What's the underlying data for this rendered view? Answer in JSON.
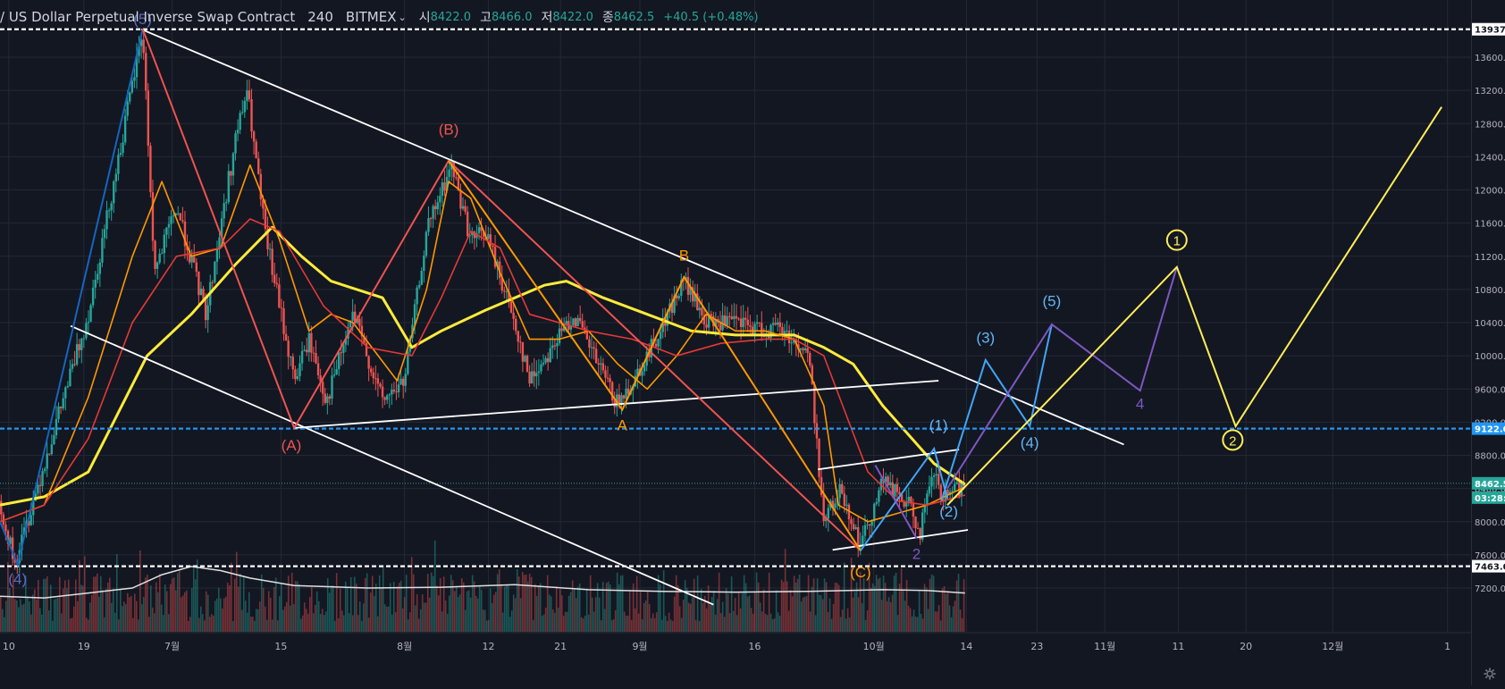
{
  "header": {
    "symbol_title": "/ US Dollar Perpetual Inverse Swap Contract",
    "interval": "240",
    "exchange": "BITMEX",
    "open_label": "시",
    "open_value": "8422.0",
    "high_label": "고",
    "high_value": "8466.0",
    "low_label": "저",
    "low_value": "8422.0",
    "close_label": "종",
    "close_value": "8462.5",
    "change": "+40.5 (+0.48%)"
  },
  "colors": {
    "background": "#131722",
    "grid": "#242836",
    "up": "#26a69a",
    "down": "#ef5350",
    "ma_yellow": "#ffeb3b",
    "ma_orange": "#ff9800",
    "ma_red": "#e53935",
    "level_blue": "#2196f3",
    "level_white": "#ffffff",
    "wave_blue": "#1565c0",
    "wave_red": "#ef5350",
    "wave_orange": "#ff9800",
    "wave_lightblue": "#42a5f5",
    "wave_purple": "#7e57c2",
    "wave_yellow": "#ffee58"
  },
  "chart_data": {
    "type": "candlestick",
    "y_axis": {
      "ticks": [
        13600,
        13200,
        12800,
        12400,
        12000,
        11600,
        11200,
        10800,
        10400,
        10000,
        9600,
        9200,
        8800,
        8400,
        8000,
        7600,
        7200
      ],
      "tick_labels": [
        "13600.0",
        "13200.0",
        "12800.0",
        "12400.0",
        "12000.0",
        "11600.0",
        "11200.0",
        "10800.0",
        "10400.0",
        "10000.0",
        "9600.0",
        "9200.0",
        "8800.0",
        "8400.0",
        "8000.0",
        "7600.0",
        "7200.0"
      ],
      "range": [
        7000,
        14000
      ]
    },
    "x_axis": {
      "ticks": [
        "10",
        "19",
        "7월",
        "15",
        "8월",
        "12",
        "21",
        "9월",
        "16",
        "10월",
        "14",
        "23",
        "11월",
        "11",
        "20",
        "12월",
        "1"
      ],
      "tick_pos": [
        0.006,
        0.057,
        0.117,
        0.191,
        0.275,
        0.332,
        0.381,
        0.435,
        0.513,
        0.594,
        0.657,
        0.705,
        0.751,
        0.801,
        0.847,
        0.906,
        0.984
      ]
    },
    "price_levels": [
      {
        "value": 13937,
        "label": "13937.",
        "color": "#ffffff",
        "style": "dashed"
      },
      {
        "value": 9122,
        "label": "9122.0",
        "color": "#2196f3",
        "style": "dashed"
      },
      {
        "value": 8462.5,
        "label": "8462.5",
        "color": "#26a69a",
        "style": "dotted"
      },
      {
        "value": 7463,
        "label": "7463.0",
        "color": "#ffffff",
        "style": "dashed"
      }
    ],
    "countdown_label": "03:28:3",
    "candle_path": [
      [
        0.0,
        8250
      ],
      [
        0.01,
        7480
      ],
      [
        0.03,
        8700
      ],
      [
        0.06,
        10500
      ],
      [
        0.085,
        12800
      ],
      [
        0.097,
        13937
      ],
      [
        0.105,
        11000
      ],
      [
        0.12,
        11800
      ],
      [
        0.14,
        10500
      ],
      [
        0.16,
        12600
      ],
      [
        0.168,
        13200
      ],
      [
        0.18,
        11500
      ],
      [
        0.2,
        9700
      ],
      [
        0.21,
        10200
      ],
      [
        0.222,
        9450
      ],
      [
        0.24,
        10500
      ],
      [
        0.26,
        9450
      ],
      [
        0.275,
        9700
      ],
      [
        0.29,
        11500
      ],
      [
        0.307,
        12300
      ],
      [
        0.32,
        11400
      ],
      [
        0.33,
        11500
      ],
      [
        0.35,
        10400
      ],
      [
        0.36,
        9700
      ],
      [
        0.39,
        10500
      ],
      [
        0.42,
        9400
      ],
      [
        0.44,
        10000
      ],
      [
        0.465,
        10900
      ],
      [
        0.48,
        10400
      ],
      [
        0.5,
        10400
      ],
      [
        0.52,
        10300
      ],
      [
        0.53,
        10350
      ],
      [
        0.55,
        10000
      ],
      [
        0.56,
        8000
      ],
      [
        0.572,
        8400
      ],
      [
        0.585,
        7700
      ],
      [
        0.6,
        8500
      ],
      [
        0.62,
        8150
      ],
      [
        0.625,
        7850
      ],
      [
        0.635,
        8600
      ],
      [
        0.64,
        8250
      ],
      [
        0.656,
        8460
      ]
    ],
    "moving_averages": [
      {
        "color": "#ffeb3b",
        "points": [
          [
            0.0,
            8200
          ],
          [
            0.03,
            8300
          ],
          [
            0.06,
            8600
          ],
          [
            0.08,
            9300
          ],
          [
            0.1,
            10000
          ],
          [
            0.13,
            10500
          ],
          [
            0.16,
            11100
          ],
          [
            0.185,
            11550
          ],
          [
            0.205,
            11200
          ],
          [
            0.225,
            10900
          ],
          [
            0.26,
            10700
          ],
          [
            0.28,
            10100
          ],
          [
            0.3,
            10300
          ],
          [
            0.33,
            10550
          ],
          [
            0.37,
            10850
          ],
          [
            0.385,
            10900
          ],
          [
            0.41,
            10700
          ],
          [
            0.44,
            10500
          ],
          [
            0.47,
            10300
          ],
          [
            0.5,
            10250
          ],
          [
            0.54,
            10250
          ],
          [
            0.56,
            10100
          ],
          [
            0.58,
            9900
          ],
          [
            0.6,
            9400
          ],
          [
            0.62,
            9000
          ],
          [
            0.635,
            8700
          ],
          [
            0.656,
            8450
          ]
        ]
      },
      {
        "color": "#ff9800",
        "points": [
          [
            0.0,
            8000
          ],
          [
            0.03,
            8200
          ],
          [
            0.06,
            9500
          ],
          [
            0.09,
            11200
          ],
          [
            0.11,
            12100
          ],
          [
            0.13,
            11200
          ],
          [
            0.15,
            11300
          ],
          [
            0.17,
            12300
          ],
          [
            0.19,
            11400
          ],
          [
            0.21,
            10300
          ],
          [
            0.225,
            10500
          ],
          [
            0.24,
            10400
          ],
          [
            0.27,
            9700
          ],
          [
            0.29,
            10800
          ],
          [
            0.305,
            12100
          ],
          [
            0.32,
            11900
          ],
          [
            0.34,
            11000
          ],
          [
            0.36,
            10200
          ],
          [
            0.38,
            10200
          ],
          [
            0.4,
            10300
          ],
          [
            0.42,
            9900
          ],
          [
            0.44,
            9600
          ],
          [
            0.46,
            10000
          ],
          [
            0.48,
            10500
          ],
          [
            0.5,
            10300
          ],
          [
            0.52,
            10300
          ],
          [
            0.54,
            10200
          ],
          [
            0.56,
            9400
          ],
          [
            0.57,
            8200
          ],
          [
            0.59,
            8000
          ],
          [
            0.61,
            8100
          ],
          [
            0.63,
            8200
          ],
          [
            0.656,
            8420
          ]
        ]
      },
      {
        "color": "#e53935",
        "points": [
          [
            0.0,
            8000
          ],
          [
            0.03,
            8200
          ],
          [
            0.06,
            9000
          ],
          [
            0.09,
            10400
          ],
          [
            0.12,
            11200
          ],
          [
            0.15,
            11300
          ],
          [
            0.17,
            11650
          ],
          [
            0.19,
            11500
          ],
          [
            0.22,
            10600
          ],
          [
            0.25,
            10100
          ],
          [
            0.28,
            10000
          ],
          [
            0.3,
            10700
          ],
          [
            0.32,
            11500
          ],
          [
            0.34,
            11300
          ],
          [
            0.36,
            10500
          ],
          [
            0.4,
            10300
          ],
          [
            0.43,
            10200
          ],
          [
            0.46,
            10000
          ],
          [
            0.49,
            10150
          ],
          [
            0.52,
            10200
          ],
          [
            0.54,
            10200
          ],
          [
            0.56,
            10000
          ],
          [
            0.575,
            9300
          ],
          [
            0.59,
            8600
          ],
          [
            0.61,
            8250
          ],
          [
            0.63,
            8200
          ],
          [
            0.656,
            8320
          ]
        ]
      }
    ],
    "volume_baseline": [
      [
        0.0,
        7100
      ],
      [
        0.03,
        7080
      ],
      [
        0.06,
        7140
      ],
      [
        0.09,
        7200
      ],
      [
        0.11,
        7360
      ],
      [
        0.13,
        7460
      ],
      [
        0.15,
        7410
      ],
      [
        0.17,
        7320
      ],
      [
        0.2,
        7230
      ],
      [
        0.25,
        7200
      ],
      [
        0.3,
        7210
      ],
      [
        0.35,
        7240
      ],
      [
        0.4,
        7180
      ],
      [
        0.45,
        7160
      ],
      [
        0.5,
        7150
      ],
      [
        0.55,
        7160
      ],
      [
        0.6,
        7180
      ],
      [
        0.63,
        7170
      ],
      [
        0.656,
        7140
      ]
    ],
    "trendlines": [
      {
        "color": "#ffffff",
        "points": [
          [
            0.096,
            13937
          ],
          [
            0.764,
            8930
          ]
        ]
      },
      {
        "color": "#ffffff",
        "points": [
          [
            0.048,
            10360
          ],
          [
            0.485,
            7000
          ]
        ]
      },
      {
        "color": "#ffffff",
        "points": [
          [
            0.2,
            9130
          ],
          [
            0.638,
            9700
          ]
        ]
      },
      {
        "color": "#ffffff",
        "points": [
          [
            0.556,
            8630
          ],
          [
            0.652,
            8870
          ]
        ]
      },
      {
        "color": "#ffffff",
        "points": [
          [
            0.566,
            7660
          ],
          [
            0.658,
            7900
          ]
        ]
      }
    ],
    "wave_paths": [
      {
        "name": "blue",
        "color": "#1565c0",
        "points": [
          [
            0.0,
            8000
          ],
          [
            0.012,
            7480
          ],
          [
            0.097,
            13937
          ]
        ]
      },
      {
        "name": "red",
        "color": "#ef5350",
        "points": [
          [
            0.097,
            13937
          ],
          [
            0.2,
            9130
          ],
          [
            0.305,
            12350
          ],
          [
            0.585,
            7650
          ]
        ]
      },
      {
        "name": "orange",
        "color": "#ff9800",
        "points": [
          [
            0.305,
            12350
          ],
          [
            0.423,
            9350
          ],
          [
            0.465,
            10950
          ],
          [
            0.585,
            7650
          ]
        ]
      },
      {
        "name": "lightblue-small",
        "color": "#42a5f5",
        "points": [
          [
            0.585,
            7650
          ],
          [
            0.635,
            8880
          ],
          [
            0.644,
            8280
          ]
        ]
      },
      {
        "name": "lightblue",
        "color": "#42a5f5",
        "points": [
          [
            0.64,
            8250
          ],
          [
            0.67,
            9950
          ],
          [
            0.7,
            9150
          ],
          [
            0.715,
            10380
          ]
        ]
      },
      {
        "name": "purple-small",
        "color": "#7e57c2",
        "points": [
          [
            0.595,
            8680
          ],
          [
            0.623,
            7800
          ]
        ]
      },
      {
        "name": "purple",
        "color": "#7e57c2",
        "points": [
          [
            0.644,
            8400
          ],
          [
            0.715,
            10380
          ],
          [
            0.775,
            9580
          ],
          [
            0.8,
            11070
          ]
        ]
      },
      {
        "name": "yellow",
        "color": "#ffee58",
        "points": [
          [
            0.644,
            8200
          ],
          [
            0.8,
            11070
          ],
          [
            0.84,
            9150
          ],
          [
            0.98,
            13000
          ]
        ]
      }
    ],
    "wave_labels": [
      {
        "text": "(4)",
        "x": 0.012,
        "y": 7250,
        "color": "#5c6bc0"
      },
      {
        "text": "(5)",
        "x": 0.097,
        "y": 14000,
        "color": "#5c6bc0"
      },
      {
        "text": "(A)",
        "x": 0.198,
        "y": 8860,
        "color": "#ef5350"
      },
      {
        "text": "(B)",
        "x": 0.305,
        "y": 12670,
        "color": "#ef5350"
      },
      {
        "text": "(C)",
        "x": 0.585,
        "y": 7330,
        "color": "#ff9800"
      },
      {
        "text": "A",
        "x": 0.423,
        "y": 9100,
        "color": "#ff9800"
      },
      {
        "text": "B",
        "x": 0.465,
        "y": 11150,
        "color": "#ff9800"
      },
      {
        "text": "2",
        "x": 0.623,
        "y": 7550,
        "color": "#7e57c2"
      },
      {
        "text": "4",
        "x": 0.775,
        "y": 9360,
        "color": "#7e57c2"
      },
      {
        "text": "(1)",
        "x": 0.638,
        "y": 9100,
        "color": "#64b5f6"
      },
      {
        "text": "(2)",
        "x": 0.645,
        "y": 8060,
        "color": "#64b5f6"
      },
      {
        "text": "(3)",
        "x": 0.67,
        "y": 10160,
        "color": "#64b5f6"
      },
      {
        "text": "(4)",
        "x": 0.7,
        "y": 8890,
        "color": "#64b5f6"
      },
      {
        "text": "(5)",
        "x": 0.715,
        "y": 10600,
        "color": "#64b5f6"
      },
      {
        "text": "1",
        "x": 0.8,
        "y": 11330,
        "color": "#ffee58",
        "circled": true
      },
      {
        "text": "2",
        "x": 0.838,
        "y": 8920,
        "color": "#ffee58",
        "circled": true
      }
    ]
  }
}
